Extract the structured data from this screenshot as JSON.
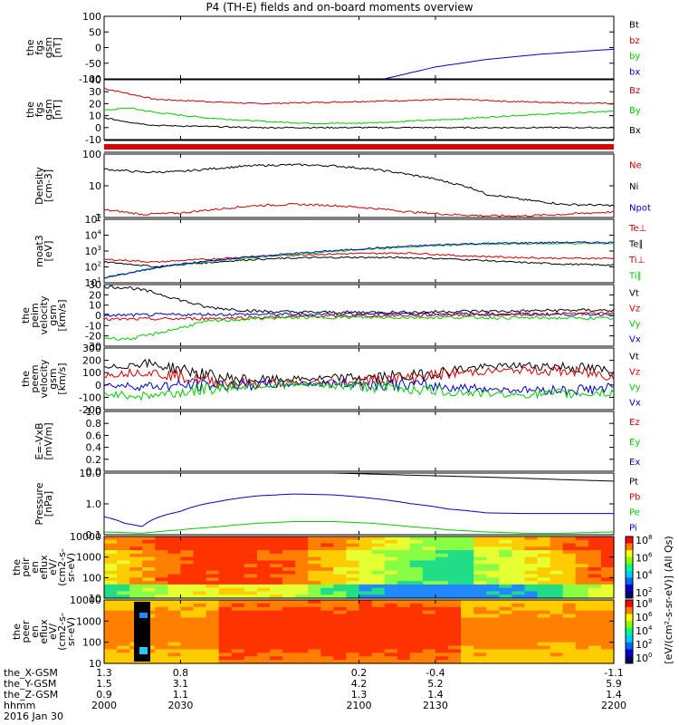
{
  "title": "P4 (TH-E) fields and on-board moments overview",
  "colors": {
    "black": "#000000",
    "red": "#cc0000",
    "green": "#00cc00",
    "blue": "#0000cc"
  },
  "chart_data": [
    {
      "type": "line",
      "ylabel": [
        "the",
        "fgs",
        "gsm",
        "[nT]"
      ],
      "yticks": [
        "100",
        "50",
        "0",
        "-50",
        "-100"
      ],
      "ylim": [
        -100,
        100
      ],
      "legend": [
        {
          "name": "Bt",
          "color": "#000000"
        },
        {
          "name": "bz",
          "color": "#cc0000"
        },
        {
          "name": "by",
          "color": "#00cc00"
        },
        {
          "name": "bx",
          "color": "#0000cc"
        }
      ],
      "series": [
        {
          "name": "bx",
          "color": "#0000cc",
          "x": [
            2110,
            2130,
            2150,
            2170,
            2200
          ],
          "y": [
            -100,
            -62,
            -38,
            -22,
            -5
          ]
        }
      ]
    },
    {
      "type": "line",
      "ylabel": [
        "the",
        "fgs",
        "gsm",
        "[nT]"
      ],
      "yticks": [
        "40",
        "30",
        "20",
        "10",
        "0",
        "-10"
      ],
      "ylim": [
        -15,
        40
      ],
      "legend": [
        {
          "name": "Bz",
          "color": "#cc0000"
        },
        {
          "name": "By",
          "color": "#00cc00"
        },
        {
          "name": "Bx",
          "color": "#000000"
        }
      ],
      "series": [
        {
          "name": "Bz",
          "color": "#cc0000",
          "x": [
            2000,
            2010,
            2020,
            2040,
            2060,
            2080,
            2100,
            2120,
            2140,
            2160,
            2180,
            2200
          ],
          "y": [
            32,
            27,
            22,
            20,
            18,
            19,
            20,
            21,
            22,
            20,
            19,
            18
          ]
        },
        {
          "name": "By",
          "color": "#00cc00",
          "x": [
            2000,
            2010,
            2020,
            2040,
            2060,
            2080,
            2100,
            2120,
            2140,
            2160,
            2180,
            2200
          ],
          "y": [
            12,
            14,
            10,
            5,
            2,
            0,
            0,
            2,
            4,
            7,
            9,
            11
          ]
        },
        {
          "name": "Bx",
          "color": "#000000",
          "x": [
            2000,
            2010,
            2020,
            2040,
            2060,
            2080,
            2100,
            2120,
            2140,
            2160,
            2180,
            2200
          ],
          "y": [
            5,
            1,
            -2,
            -3,
            -4,
            -4,
            -4,
            -4,
            -4,
            -4,
            -4,
            -4
          ]
        }
      ]
    },
    {
      "type": "line",
      "ylabel": [
        "Density",
        "[cm-3]"
      ],
      "yticks": [
        "100",
        "10",
        "1"
      ],
      "ylog": true,
      "ylim": [
        0.6,
        200
      ],
      "legend": [
        {
          "name": "Ne",
          "color": "#cc0000"
        },
        {
          "name": "Ni",
          "color": "#000000"
        },
        {
          "name": "Npot",
          "color": "#0000cc"
        }
      ],
      "series": [
        {
          "name": "Ni",
          "color": "#000000",
          "x": [
            2000,
            2015,
            2030,
            2045,
            2060,
            2075,
            2090,
            2105,
            2120,
            2135,
            2150,
            2165,
            2180,
            2200
          ],
          "y": [
            50,
            38,
            40,
            55,
            70,
            75,
            68,
            50,
            30,
            15,
            5,
            3,
            2,
            1.8
          ]
        },
        {
          "name": "Ne",
          "color": "#cc0000",
          "x": [
            2000,
            2015,
            2030,
            2045,
            2060,
            2075,
            2090,
            2105,
            2120,
            2135,
            2150,
            2165,
            2180,
            2200
          ],
          "y": [
            1.2,
            0.8,
            0.9,
            1.3,
            1.8,
            2.0,
            1.8,
            1.4,
            1.0,
            0.8,
            0.7,
            0.7,
            0.8,
            1.0
          ]
        }
      ]
    },
    {
      "type": "line",
      "ylabel": [
        "moat3",
        "[eV]"
      ],
      "yticks": [
        "10",
        "10",
        "10",
        "10",
        "10"
      ],
      "ylog": true,
      "ylim": [
        10,
        100000
      ],
      "legend": [
        {
          "name": "Te⊥",
          "color": "#cc0000"
        },
        {
          "name": "Te∥",
          "color": "#000000"
        },
        {
          "name": "Ti⊥",
          "color": "#cc0000"
        },
        {
          "name": "Ti∥",
          "color": "#00cc00"
        }
      ],
      "series": [
        {
          "name": "Te∥",
          "color": "#000000",
          "x": [
            2000,
            2010,
            2020,
            2040,
            2060,
            2080,
            2100,
            2120,
            2140,
            2160,
            2180,
            2200
          ],
          "y": [
            200,
            150,
            100,
            180,
            300,
            380,
            400,
            380,
            300,
            200,
            150,
            130
          ]
        },
        {
          "name": "Ti⊥",
          "color": "#cc0000",
          "x": [
            2000,
            2010,
            2020,
            2040,
            2060,
            2080,
            2100,
            2120,
            2140,
            2160,
            2180,
            2200
          ],
          "y": [
            300,
            250,
            200,
            300,
            450,
            600,
            700,
            750,
            500,
            400,
            350,
            350
          ]
        },
        {
          "name": "Ti∥",
          "color": "#00cc00",
          "x": [
            2000,
            2010,
            2020,
            2040,
            2060,
            2080,
            2100,
            2120,
            2140,
            2160,
            2180,
            2200
          ],
          "y": [
            20,
            40,
            80,
            200,
            400,
            700,
            1200,
            1800,
            2500,
            2800,
            3000,
            3000
          ]
        },
        {
          "name": "Tblue",
          "color": "#0000cc",
          "x": [
            2000,
            2010,
            2020,
            2040,
            2060,
            2080,
            2100,
            2120,
            2140,
            2160,
            2180,
            2200
          ],
          "y": [
            20,
            40,
            80,
            220,
            450,
            800,
            1300,
            2000,
            2800,
            3200,
            3500,
            3500
          ]
        }
      ]
    },
    {
      "type": "line",
      "ylabel": [
        "the",
        "peim",
        "velocity",
        "gsm",
        "[km/s]"
      ],
      "yticks": [
        "30",
        "20",
        "10",
        "0",
        "-10",
        "-20",
        "-30"
      ],
      "ylim": [
        -30,
        30
      ],
      "legend": [
        {
          "name": "Vt",
          "color": "#000000"
        },
        {
          "name": "Vz",
          "color": "#cc0000"
        },
        {
          "name": "Vy",
          "color": "#00cc00"
        },
        {
          "name": "Vx",
          "color": "#0000cc"
        }
      ],
      "series": [
        {
          "name": "Vt",
          "color": "#000000",
          "x": [
            2000,
            2010,
            2020,
            2030,
            2040,
            2060,
            2080,
            2100,
            2120,
            2140,
            2160,
            2180,
            2200
          ],
          "y": [
            28,
            27,
            22,
            15,
            8,
            4,
            3,
            3,
            3,
            4,
            4,
            5,
            5
          ]
        },
        {
          "name": "Vx",
          "color": "#0000cc",
          "x": [
            2000,
            2040,
            2080,
            2120,
            2160,
            2200
          ],
          "y": [
            0,
            1,
            1,
            2,
            1,
            1
          ]
        },
        {
          "name": "Vz",
          "color": "#cc0000",
          "x": [
            2000,
            2040,
            2080,
            2120,
            2160,
            2200
          ],
          "y": [
            -4,
            -3,
            -1,
            0,
            1,
            2
          ]
        },
        {
          "name": "Vy",
          "color": "#00cc00",
          "x": [
            2000,
            2010,
            2020,
            2030,
            2040,
            2060,
            2080,
            2100,
            2140,
            2200
          ],
          "y": [
            -22,
            -23,
            -18,
            -12,
            -6,
            -3,
            -2,
            -2,
            -2,
            -3
          ]
        }
      ]
    },
    {
      "type": "line",
      "ylabel": [
        "the",
        "peem",
        "velocity",
        "gsm",
        "[km/s]"
      ],
      "yticks": [
        "300",
        "200",
        "100",
        "0",
        "-100",
        "-200"
      ],
      "ylim": [
        -200,
        300
      ],
      "legend": [
        {
          "name": "Vt",
          "color": "#000000"
        },
        {
          "name": "Vz",
          "color": "#cc0000"
        },
        {
          "name": "Vy",
          "color": "#00cc00"
        },
        {
          "name": "Vx",
          "color": "#0000cc"
        }
      ],
      "series": [
        {
          "name": "Vt",
          "color": "#000000",
          "x": [
            2000,
            2015,
            2030,
            2045,
            2060,
            2080,
            2100,
            2120,
            2140,
            2160,
            2180,
            2200
          ],
          "y": [
            130,
            180,
            130,
            60,
            40,
            50,
            60,
            70,
            130,
            160,
            150,
            110
          ]
        },
        {
          "name": "Vz",
          "color": "#cc0000",
          "x": [
            2000,
            2015,
            2030,
            2045,
            2060,
            2080,
            2100,
            2120,
            2140,
            2160,
            2180,
            2200
          ],
          "y": [
            80,
            110,
            70,
            20,
            10,
            20,
            30,
            60,
            100,
            120,
            110,
            80
          ]
        },
        {
          "name": "Vx",
          "color": "#0000cc",
          "x": [
            2000,
            2015,
            2030,
            2045,
            2060,
            2080,
            2100,
            2120,
            2140,
            2160,
            2180,
            2200
          ],
          "y": [
            0,
            -10,
            -5,
            0,
            0,
            10,
            10,
            0,
            -20,
            -40,
            -40,
            -30
          ]
        },
        {
          "name": "Vy",
          "color": "#00cc00",
          "x": [
            2000,
            2015,
            2030,
            2045,
            2060,
            2080,
            2100,
            2120,
            2140,
            2160,
            2180,
            2200
          ],
          "y": [
            -70,
            -90,
            -60,
            -20,
            0,
            0,
            -10,
            -30,
            -60,
            -80,
            -70,
            -60
          ]
        }
      ]
    },
    {
      "type": "line",
      "ylabel": [
        "E=-VxB",
        "[mV/m]"
      ],
      "yticks": [
        "1.0",
        "0.8",
        "0.6",
        "0.4",
        "0.2",
        "0.0"
      ],
      "ylim": [
        0,
        1
      ],
      "legend": [
        {
          "name": "Ez",
          "color": "#cc0000"
        },
        {
          "name": "Ey",
          "color": "#00cc00"
        },
        {
          "name": "Ex",
          "color": "#0000cc"
        }
      ],
      "series": []
    },
    {
      "type": "line",
      "ylabel": [
        "Pressure",
        "[nPa]"
      ],
      "yticks": [
        "10.0",
        "1.0",
        "0.1"
      ],
      "ylog": true,
      "ylim": [
        0.03,
        20
      ],
      "legend": [
        {
          "name": "Pt",
          "color": "#000000"
        },
        {
          "name": "Pb",
          "color": "#cc0000"
        },
        {
          "name": "Pe",
          "color": "#00cc00"
        },
        {
          "name": "Pi",
          "color": "#0000cc"
        }
      ],
      "series": [
        {
          "name": "Pt",
          "color": "#000000",
          "x": [
            2090,
            2120,
            2150,
            2180,
            2200
          ],
          "y": [
            20,
            16,
            13,
            10,
            8.5
          ]
        },
        {
          "name": "Pi",
          "color": "#0000cc",
          "x": [
            2000,
            2008,
            2015,
            2030,
            2045,
            2060,
            2075,
            2090,
            2105,
            2120,
            2135,
            2150,
            2165,
            2180,
            2200
          ],
          "y": [
            0.2,
            0.1,
            0.07,
            0.35,
            1.0,
            1.8,
            2.2,
            2.0,
            1.4,
            0.8,
            0.45,
            0.3,
            0.28,
            0.28,
            0.28
          ]
        },
        {
          "name": "Pe",
          "color": "#00cc00",
          "x": [
            2000,
            2015,
            2030,
            2045,
            2060,
            2075,
            2090,
            2105,
            2120,
            2135,
            2150,
            2165,
            2180,
            2200
          ],
          "y": [
            0.04,
            0.035,
            0.05,
            0.07,
            0.1,
            0.12,
            0.12,
            0.1,
            0.07,
            0.05,
            0.04,
            0.035,
            0.035,
            0.04
          ]
        }
      ]
    },
    {
      "type": "heatmap",
      "ylabel": [
        "the",
        "peir",
        "en",
        "eflux",
        "eV/",
        "(cm2-s-",
        "sr-eV)"
      ],
      "yticks": [
        "10000",
        "1000",
        "100",
        "10"
      ],
      "ylog": true,
      "ylim": [
        5,
        25000
      ]
    },
    {
      "type": "heatmap",
      "ylabel": [
        "the",
        "peer",
        "en",
        "eflux",
        "eV/",
        "(cm2-s-",
        "sr-eV)"
      ],
      "yticks": [
        "10000",
        "1000",
        "100",
        "10"
      ],
      "ylog": true,
      "ylim": [
        5,
        25000
      ]
    }
  ],
  "colorbar": {
    "label": "[eV/(cm²-s-sr-eV)] (All Qs)",
    "ticks_top": [
      "10",
      "10",
      "10",
      "10"
    ],
    "ticks_bottom": [
      "10",
      "10",
      "10",
      "10",
      "10"
    ]
  },
  "xaxis": {
    "rows": [
      {
        "label": "the_X-GSM",
        "values": [
          "1.3",
          "0.8",
          "0.2",
          "-0.4",
          "-1.1"
        ]
      },
      {
        "label": "the_Y-GSM",
        "values": [
          "1.5",
          "3.1",
          "4.2",
          "5.2",
          "5.9"
        ]
      },
      {
        "label": "the_Z-GSM",
        "values": [
          "0.9",
          "1.1",
          "1.3",
          "1.4",
          "1.4"
        ]
      },
      {
        "label": "hhmm",
        "values": [
          "2000",
          "2030",
          "2100",
          "2130",
          "2200"
        ]
      }
    ],
    "date": "2016 Jan 30",
    "ticks": [
      2000,
      2030,
      2100,
      2130,
      2200
    ]
  }
}
